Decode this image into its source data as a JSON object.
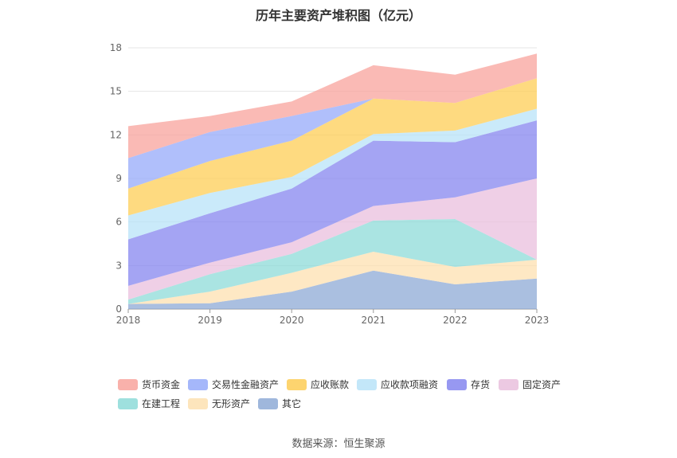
{
  "chart_data": {
    "type": "area",
    "stacked": true,
    "title": "历年主要资产堆积图（亿元）",
    "categories": [
      "2018",
      "2019",
      "2020",
      "2021",
      "2022",
      "2023"
    ],
    "y_ticks": [
      0,
      3,
      6,
      9,
      12,
      15,
      18
    ],
    "ylim": [
      0,
      18
    ],
    "grid": true,
    "series": [
      {
        "name": "其它",
        "color": "#8eaad6",
        "values": [
          0.35,
          0.4,
          1.2,
          2.65,
          1.7,
          2.1
        ]
      },
      {
        "name": "无形资产",
        "color": "#fde0b0",
        "values": [
          0.0,
          0.8,
          1.3,
          1.3,
          1.2,
          1.3
        ]
      },
      {
        "name": "在建工程",
        "color": "#8ddbd8",
        "values": [
          0.3,
          1.2,
          1.3,
          2.15,
          3.3,
          0.0
        ]
      },
      {
        "name": "固定资产",
        "color": "#e9bfdd",
        "values": [
          0.95,
          0.8,
          0.8,
          1.0,
          1.5,
          5.6
        ]
      },
      {
        "name": "存货",
        "color": "#8586ef",
        "values": [
          3.2,
          3.4,
          3.7,
          4.5,
          3.8,
          4.0
        ]
      },
      {
        "name": "应收款项融资",
        "color": "#b8e3f8",
        "values": [
          1.65,
          1.4,
          0.8,
          0.45,
          0.8,
          0.8
        ]
      },
      {
        "name": "应收账款",
        "color": "#fdcd56",
        "values": [
          1.85,
          2.2,
          2.5,
          2.45,
          1.9,
          2.1
        ]
      },
      {
        "name": "交易性金融资产",
        "color": "#95aaf9",
        "values": [
          2.1,
          2.0,
          1.7,
          0.0,
          0.0,
          0.0
        ]
      },
      {
        "name": "货币资金",
        "color": "#f8a39c",
        "values": [
          2.2,
          1.1,
          1.0,
          2.3,
          1.95,
          1.7
        ]
      }
    ],
    "legend": [
      "货币资金",
      "交易性金融资产",
      "应收账款",
      "应收款项融资",
      "存货",
      "固定资产",
      "在建工程",
      "无形资产",
      "其它"
    ],
    "legend_position": "bottom"
  },
  "source_text": "数据来源：恒生聚源"
}
